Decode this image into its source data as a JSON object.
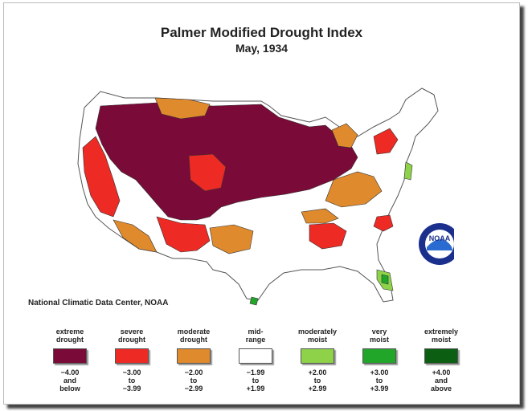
{
  "title": "Palmer Modified Drought Index",
  "subtitle": "May, 1934",
  "credit": "National Climatic Data Center, NOAA",
  "logo_text": "NOAA",
  "legend": [
    {
      "label": "extreme\ndrought",
      "range": "−4.00\nand\nbelow",
      "color": "#7a0a37"
    },
    {
      "label": "severe\ndrought",
      "range": "−3.00\nto\n−3.99",
      "color": "#ee2a24"
    },
    {
      "label": "moderate\ndrought",
      "range": "−2.00\nto\n−2.99",
      "color": "#e08a2e"
    },
    {
      "label": "mid-\nrange",
      "range": "−1.99\nto\n+1.99",
      "color": "#ffffff"
    },
    {
      "label": "moderately\nmoist",
      "range": "+2.00\nto\n+2.99",
      "color": "#8ed24a"
    },
    {
      "label": "very\nmoist",
      "range": "+3.00\nto\n+3.99",
      "color": "#21a62a"
    },
    {
      "label": "extremely\nmoist",
      "range": "+4.00\nand\nabove",
      "color": "#0b5e12"
    }
  ]
}
